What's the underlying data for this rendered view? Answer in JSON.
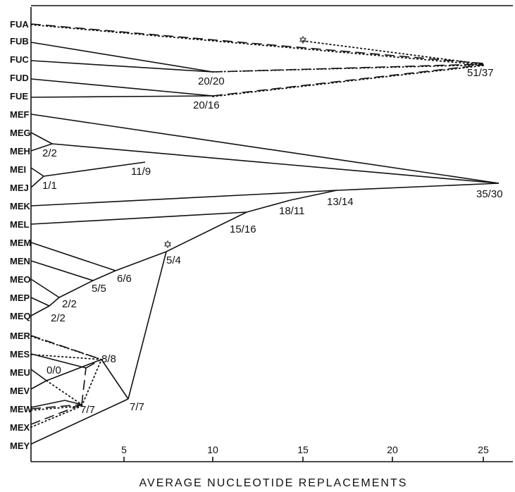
{
  "x_axis": {
    "title": "AVERAGE NUCLEOTIDE REPLACEMENTS",
    "ticks": [
      "5",
      "10",
      "15",
      "20",
      "25"
    ]
  },
  "taxa": [
    "FUA",
    "FUB",
    "FUC",
    "FUD",
    "FUE",
    "MEF",
    "MEG",
    "MEH",
    "MEI",
    "MEJ",
    "MEK",
    "MEL",
    "MEM",
    "MEN",
    "MEO",
    "MEP",
    "MEQ",
    "MER",
    "MES",
    "MEU",
    "MEV",
    "MEW",
    "MEX",
    "MEY"
  ],
  "nodes": [
    "51/37",
    "20/20",
    "20/16",
    "35/30",
    "2/2",
    "11/9",
    "1/1",
    "13/14",
    "18/11",
    "15/16",
    "5/4",
    "6/6",
    "5/5",
    "2/2",
    "2/2",
    "8/8",
    "0/0",
    "7/7",
    "7/7"
  ],
  "markers": [
    "✡",
    "✡"
  ]
}
